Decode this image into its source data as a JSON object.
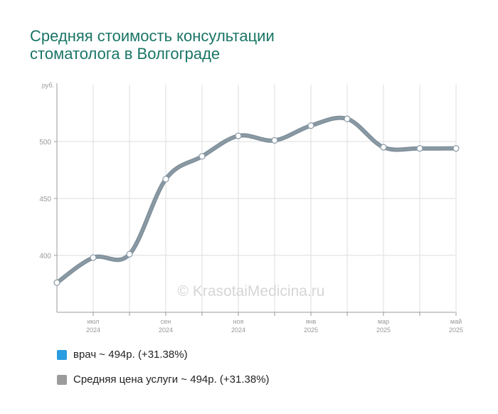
{
  "title_lines": [
    "Средняя стоимость консультации",
    "стоматолога в Волгограде"
  ],
  "watermark": "© KrasotaiMedicina.ru",
  "chart_data": {
    "type": "line",
    "y_unit": "руб.",
    "ylim": [
      350,
      550
    ],
    "y_ticks": [
      400,
      450,
      500
    ],
    "x_tick_labels": [
      {
        "month": "июл",
        "year": "2024",
        "index": 1
      },
      {
        "month": "сен",
        "year": "2024",
        "index": 3
      },
      {
        "month": "ноя",
        "year": "2024",
        "index": 5
      },
      {
        "month": "янв",
        "year": "2025",
        "index": 7
      },
      {
        "month": "мар",
        "year": "2025",
        "index": 9
      },
      {
        "month": "май",
        "year": "2025",
        "index": 11
      }
    ],
    "months": [
      "2024-06",
      "2024-07",
      "2024-08",
      "2024-09",
      "2024-10",
      "2024-11",
      "2024-12",
      "2025-01",
      "2025-02",
      "2025-03",
      "2025-04",
      "2025-05"
    ],
    "grid": true,
    "series": [
      {
        "name": "врач",
        "color": "#2b9be0",
        "values": [
          376,
          398,
          401,
          467,
          487,
          505,
          501,
          514,
          520,
          495,
          494,
          494
        ]
      },
      {
        "name": "Средняя цена услуги",
        "color": "#8a9aa5",
        "values": [
          376,
          398,
          401,
          467,
          487,
          505,
          501,
          514,
          520,
          495,
          494,
          494
        ]
      }
    ]
  },
  "legend": [
    {
      "label": "врач ~ 494р. (+31.38%)",
      "color": "#2a9ce0"
    },
    {
      "label": "Средняя цена услуги ~ 494р. (+31.38%)",
      "color": "#9b9b9b"
    }
  ]
}
